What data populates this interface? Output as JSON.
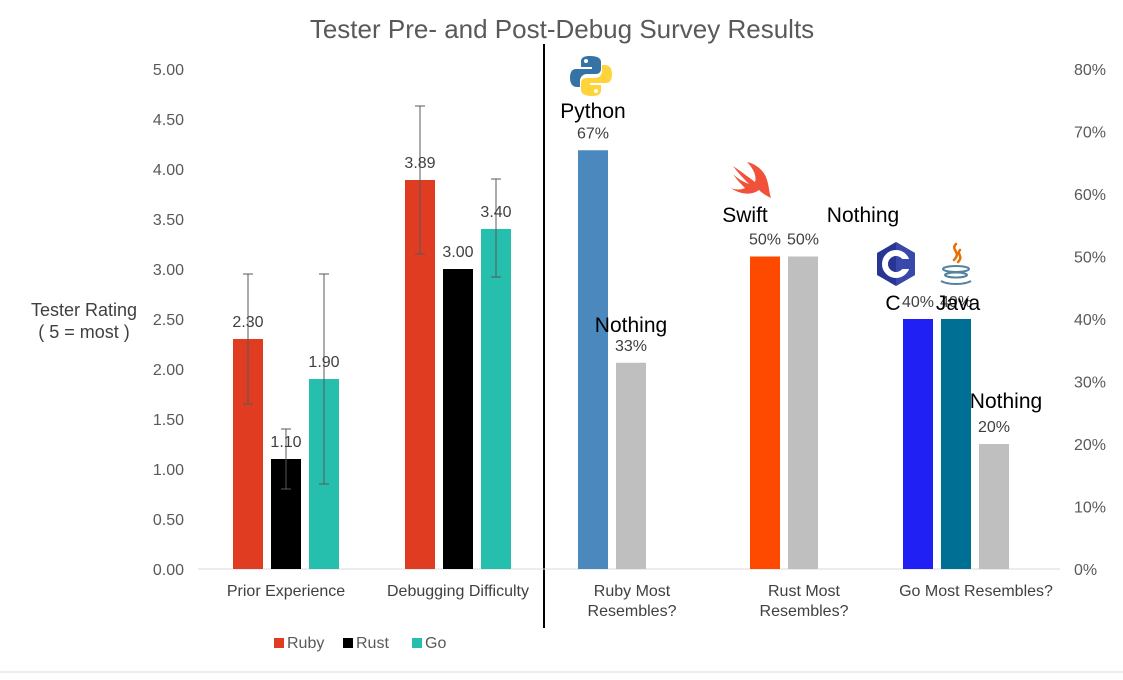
{
  "chart_data": {
    "title": "Tester Pre- and Post-Debug Survey Results",
    "ylabel_left": [
      "Tester Rating",
      "( 5 = most )"
    ],
    "left_axis": {
      "ylim": [
        0,
        5
      ],
      "ticks": [
        "0.00",
        "0.50",
        "1.00",
        "1.50",
        "2.00",
        "2.50",
        "3.00",
        "3.50",
        "4.00",
        "4.50",
        "5.00"
      ]
    },
    "right_axis": {
      "ylim": [
        0,
        80
      ],
      "ticks": [
        "0%",
        "10%",
        "20%",
        "30%",
        "40%",
        "50%",
        "60%",
        "70%",
        "80%"
      ]
    },
    "gridlines": false,
    "legend": {
      "position": "bottom-left",
      "entries": [
        {
          "name": "Ruby",
          "color": "#e03c22"
        },
        {
          "name": "Rust",
          "color": "#000000"
        },
        {
          "name": "Go",
          "color": "#26bfad"
        }
      ]
    },
    "rating_groups": [
      {
        "category": "Prior Experience",
        "bars": [
          {
            "series": "Ruby",
            "value": 2.3,
            "label": "2.30",
            "err_low": 1.65,
            "err_high": 2.95,
            "color": "#e03c22"
          },
          {
            "series": "Rust",
            "value": 1.1,
            "label": "1.10",
            "err_low": 0.8,
            "err_high": 1.4,
            "color": "#000000"
          },
          {
            "series": "Go",
            "value": 1.9,
            "label": "1.90",
            "err_low": 0.85,
            "err_high": 2.95,
            "color": "#26bfad"
          }
        ]
      },
      {
        "category": "Debugging Difficulty",
        "bars": [
          {
            "series": "Ruby",
            "value": 3.89,
            "label": "3.89",
            "err_low": 3.15,
            "err_high": 4.63,
            "color": "#e03c22"
          },
          {
            "series": "Rust",
            "value": 3.0,
            "label": "3.00",
            "color": "#000000"
          },
          {
            "series": "Go",
            "value": 3.4,
            "label": "3.40",
            "err_low": 2.92,
            "err_high": 3.9,
            "color": "#26bfad"
          }
        ]
      }
    ],
    "resemble_groups": [
      {
        "category_lines": [
          "Ruby Most",
          "Resembles?"
        ],
        "bars": [
          {
            "name": "Python",
            "value": 67,
            "label": "67%",
            "color": "#4a88bd",
            "icon": "python-logo-icon"
          },
          {
            "name": "Nothing",
            "value": 33,
            "label": "33%",
            "color": "#bfbfbf"
          }
        ]
      },
      {
        "category_lines": [
          "Rust Most",
          "Resembles?"
        ],
        "bars": [
          {
            "name": "Swift",
            "value": 50,
            "label": "50%",
            "color": "#fe4a00",
            "icon": "swift-logo-icon"
          },
          {
            "name": "Nothing",
            "value": 50,
            "label": "50%",
            "color": "#bfbfbf"
          }
        ]
      },
      {
        "category_lines": [
          "Go Most Resembles?"
        ],
        "bars": [
          {
            "name": "C",
            "value": 40,
            "label": "40%",
            "color": "#2020f5",
            "icon": "c-logo-icon"
          },
          {
            "name": "Java",
            "value": 40,
            "label": "40%",
            "color": "#006f94",
            "icon": "java-logo-icon"
          },
          {
            "name": "Nothing",
            "value": 20,
            "label": "20%",
            "color": "#bfbfbf"
          }
        ]
      }
    ]
  }
}
